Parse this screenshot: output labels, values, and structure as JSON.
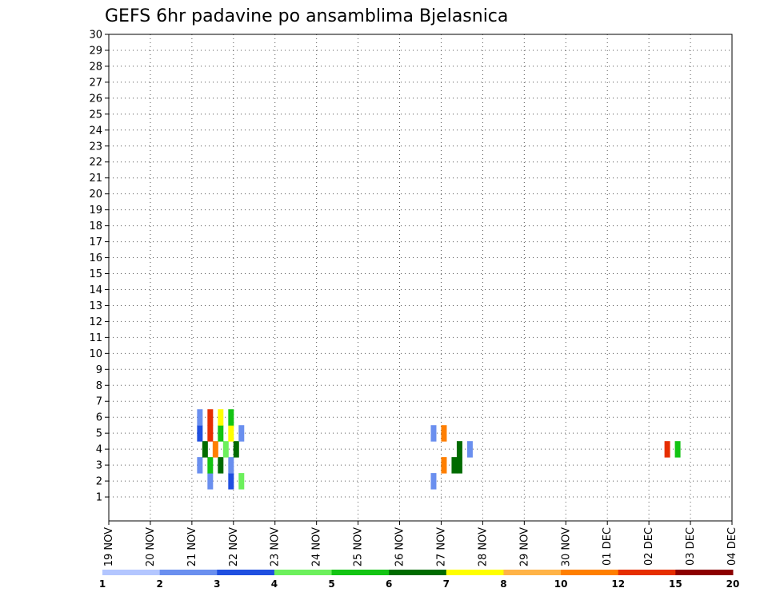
{
  "chart_data": {
    "type": "heatmap",
    "title": "GEFS 6hr padavine po ansamblima Bjelasnica",
    "y_categories": [
      "1",
      "2",
      "3",
      "4",
      "5",
      "6",
      "7",
      "8",
      "9",
      "10",
      "11",
      "12",
      "13",
      "14",
      "15",
      "16",
      "17",
      "18",
      "19",
      "20",
      "21",
      "22",
      "23",
      "24",
      "25",
      "26",
      "27",
      "28",
      "29",
      "30"
    ],
    "x_tick_labels": [
      "19 NOV",
      "20 NOV",
      "21 NOV",
      "22 NOV",
      "23 NOV",
      "24 NOV",
      "25 NOV",
      "26 NOV",
      "27 NOV",
      "28 NOV",
      "29 NOV",
      "30 NOV",
      "01 DEC",
      "02 DEC",
      "03 DEC",
      "04 DEC"
    ],
    "grid": "dotted",
    "colorbar": {
      "labels": [
        "1",
        "2",
        "3",
        "4",
        "5",
        "6",
        "7",
        "8",
        "10",
        "12",
        "15",
        "20"
      ],
      "colors": [
        "#b3c6ff",
        "#6a8fef",
        "#1f4fe0",
        "#6cf05c",
        "#13c413",
        "#006b00",
        "#ffff00",
        "#ffb347",
        "#ff7f00",
        "#e62e00",
        "#8c0000"
      ]
    },
    "rows": [
      "....................................................................................................................................",
      "...................1...2.3....................................1..................................................................",
      ".................1.4.5.1........................................8.55..............................................................",
      "..................5.8.3.5..........................................5.1.....................................9.4...................",
      ".................2.9.4.6.1....................................1.8................................................................",
      ".................1.9.6.4.......................................................................................................",
      "......................................................................................................................................."
    ]
  }
}
